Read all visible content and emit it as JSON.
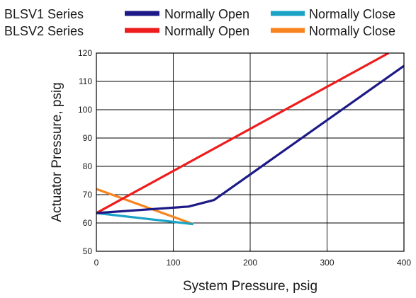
{
  "chart_data": {
    "type": "line",
    "title": "",
    "xlabel": "System Pressure, psig",
    "ylabel": "Actuator Pressure, psig",
    "xlim": [
      0,
      400
    ],
    "ylim": [
      50,
      120
    ],
    "xticks": [
      0,
      100,
      200,
      300,
      400
    ],
    "yticks": [
      50,
      60,
      70,
      80,
      90,
      100,
      110,
      120
    ],
    "grid": true,
    "legend": {
      "placement": "top",
      "groups": [
        {
          "label": "BLSV1 Series",
          "entries": [
            {
              "label": "Normally Open",
              "color": "#1c1a86"
            },
            {
              "label": "Normally Close",
              "color": "#1aa3c7"
            }
          ]
        },
        {
          "label": "BLSV2 Series",
          "entries": [
            {
              "label": "Normally Open",
              "color": "#ee1c1c"
            },
            {
              "label": "Normally Close",
              "color": "#f7841e"
            }
          ]
        }
      ]
    },
    "series": [
      {
        "name": "Normally Open",
        "group": "BLSV1 Series",
        "color": "#1c1a86",
        "points": [
          [
            0,
            63.5
          ],
          [
            120,
            65.8
          ],
          [
            153,
            68.1
          ],
          [
            400,
            115.5
          ]
        ]
      },
      {
        "name": "Normally Close",
        "group": "BLSV1 Series",
        "color": "#1aa3c7",
        "points": [
          [
            0,
            63.5
          ],
          [
            126,
            59.6
          ]
        ]
      },
      {
        "name": "Normally Open",
        "group": "BLSV2 Series",
        "color": "#ee1c1c",
        "points": [
          [
            0,
            63.5
          ],
          [
            380,
            120
          ]
        ]
      },
      {
        "name": "Normally Close",
        "group": "BLSV2 Series",
        "color": "#f7841e",
        "points": [
          [
            0,
            72
          ],
          [
            126,
            59.6
          ]
        ]
      }
    ]
  }
}
